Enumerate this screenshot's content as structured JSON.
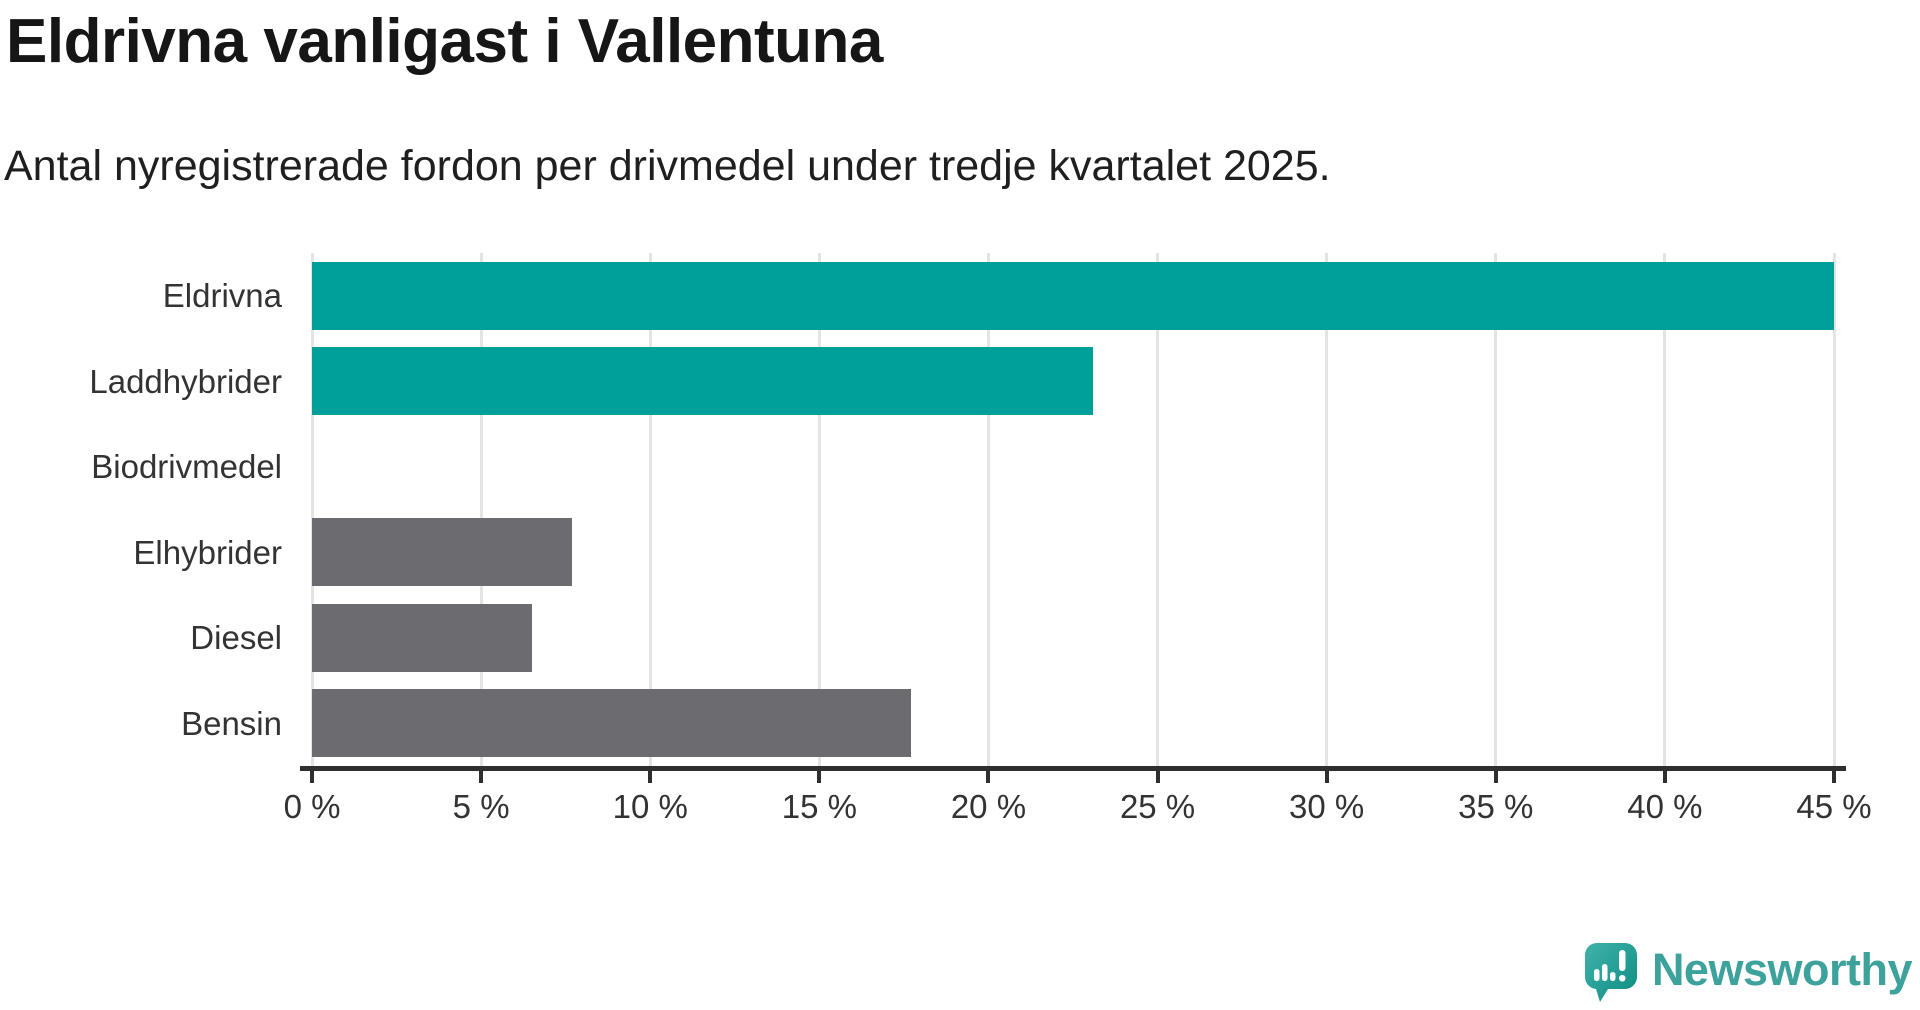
{
  "title": "Eldrivna vanligast i Vallentuna",
  "subtitle": "Antal nyregistrerade fordon per drivmedel under tredje kvartalet 2025.",
  "chart_data": {
    "type": "bar",
    "orientation": "horizontal",
    "title": "Eldrivna vanligast i Vallentuna",
    "subtitle": "Antal nyregistrerade fordon per drivmedel under tredje kvartalet 2025.",
    "categories": [
      "Eldrivna",
      "Laddhybrider",
      "Biodrivmedel",
      "Elhybrider",
      "Diesel",
      "Bensin"
    ],
    "values": [
      45,
      23.1,
      0,
      7.7,
      6.5,
      17.7
    ],
    "unit": "%",
    "xlim": [
      0,
      45
    ],
    "x_tick_values": [
      0,
      5,
      10,
      15,
      20,
      25,
      30,
      35,
      40,
      45
    ],
    "x_tick_labels": [
      "0 %",
      "5 %",
      "10 %",
      "15 %",
      "20 %",
      "25 %",
      "30 %",
      "35 %",
      "40 %",
      "45 %"
    ],
    "grid": true,
    "legend": "none",
    "colors": {
      "highlight": "#00a09a",
      "default": "#6b6b70",
      "bar_colors": [
        "#00a09a",
        "#00a09a",
        "#00a09a",
        "#6b6b70",
        "#6b6b70",
        "#6b6b70"
      ],
      "gridline": "#e4e4e4",
      "axis": "#2f2f2f",
      "text": "#333333"
    }
  },
  "branding": {
    "logo_text": "Newsworthy",
    "logo_text_color": "#3da29b",
    "logo_icon": "speech-bubble-bar-chart-exclamation",
    "logo_icon_color_top": "#3fb3a9",
    "logo_icon_color_bottom": "#0d8c83"
  }
}
